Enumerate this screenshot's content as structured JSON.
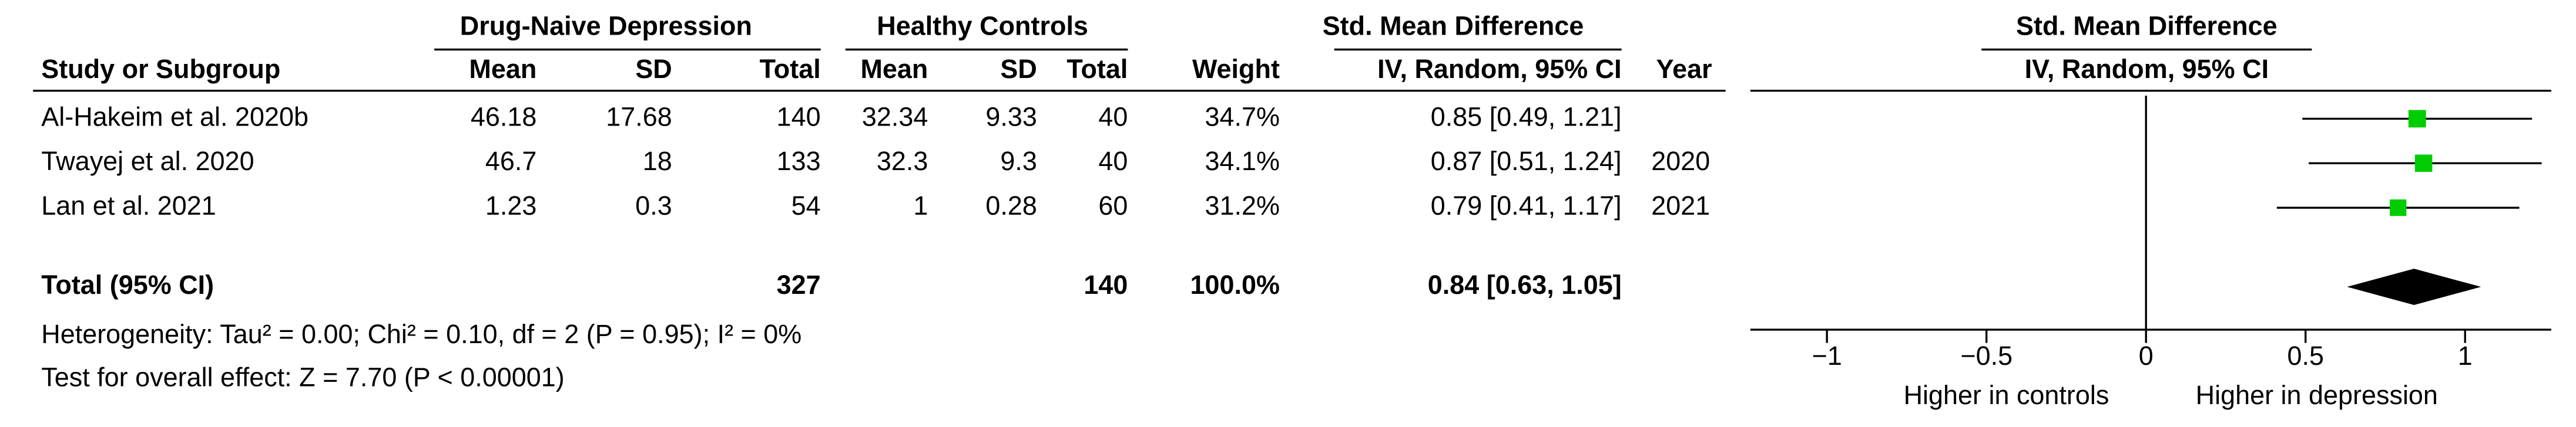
{
  "chart_data": {
    "type": "forest",
    "group_headers": {
      "depression": "Drug-Naive Depression",
      "controls": "Healthy Controls",
      "effect": "Std. Mean Difference",
      "plot": "Std. Mean Difference"
    },
    "column_headers": {
      "study": "Study or Subgroup",
      "mean1": "Mean",
      "sd1": "SD",
      "total1": "Total",
      "mean2": "Mean",
      "sd2": "SD",
      "total2": "Total",
      "weight": "Weight",
      "effect": "IV, Random, 95% CI",
      "year": "Year",
      "plot": "IV, Random, 95% CI"
    },
    "studies": [
      {
        "name": "Al-Hakeim et al. 2020b",
        "mean1": 46.18,
        "sd1": 17.68,
        "total1": 140,
        "mean2": 32.34,
        "sd2": 9.33,
        "total2": 40,
        "weight": 34.7,
        "weight_label": "34.7%",
        "effect": 0.85,
        "ci": [
          0.49,
          1.21
        ],
        "effect_label": "0.85 [0.49, 1.21]",
        "year": null
      },
      {
        "name": "Twayej et al. 2020",
        "mean1": 46.7,
        "sd1": 18,
        "total1": 133,
        "mean2": 32.3,
        "sd2": 9.3,
        "total2": 40,
        "weight": 34.1,
        "weight_label": "34.1%",
        "effect": 0.87,
        "ci": [
          0.51,
          1.24
        ],
        "effect_label": "0.87 [0.51, 1.24]",
        "year": 2020
      },
      {
        "name": "Lan et al. 2021",
        "mean1": 1.23,
        "sd1": 0.3,
        "total1": 54,
        "mean2": 1,
        "sd2": 0.28,
        "total2": 60,
        "weight": 31.2,
        "weight_label": "31.2%",
        "effect": 0.79,
        "ci": [
          0.41,
          1.17
        ],
        "effect_label": "0.79 [0.41, 1.17]",
        "year": 2021
      }
    ],
    "total": {
      "name": "Total (95% CI)",
      "total1": 327,
      "total2": 140,
      "weight": 100.0,
      "weight_label": "100.0%",
      "effect": 0.84,
      "ci": [
        0.63,
        1.05
      ],
      "effect_label": "0.84 [0.63, 1.05]"
    },
    "heterogeneity": "Heterogeneity: Tau² = 0.00; Chi² = 0.10, df = 2 (P = 0.95); I² = 0%",
    "overall_effect": "Test for overall effect: Z = 7.70 (P < 0.00001)",
    "xlim": [
      -1.24,
      1.27
    ],
    "xticks": [
      {
        "value": -1,
        "label": "−1"
      },
      {
        "value": -0.5,
        "label": "−0.5"
      },
      0,
      0.5,
      1
    ],
    "x_labels": [
      "Higher in controls",
      "Higher in depression"
    ],
    "color": "#00cc00"
  }
}
